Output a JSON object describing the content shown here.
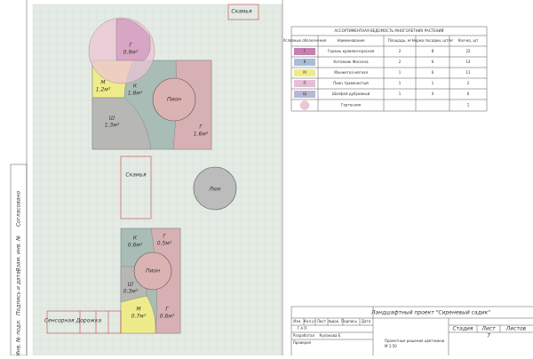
{
  "plan": {
    "benches": [
      "Скамья",
      "Скамья"
    ],
    "hatch": "Люк",
    "path": "Сенсорная Дорожка",
    "peonies": [
      "Пион",
      "Пион"
    ],
    "beds": [
      {
        "code": "Г",
        "area": "0.9м²"
      },
      {
        "code": "М",
        "area": "1.2м²"
      },
      {
        "code": "К",
        "area": "1.8м²"
      },
      {
        "code": "Ш",
        "area": "1.3м²"
      },
      {
        "code": "Г",
        "area": "1.6м²"
      },
      {
        "code": "К",
        "area": "0.6м²"
      },
      {
        "code": "Г",
        "area": "0.5м²"
      },
      {
        "code": "Ш",
        "area": "0.3м²"
      },
      {
        "code": "М",
        "area": "0.7м²"
      },
      {
        "code": "Г",
        "area": "0.6м²"
      }
    ]
  },
  "table": {
    "title": "АССОРТИМЕНТНАЯ ВЕДОМОСТЬ МНОГОЛЕТНИХ РАСТЕНИЙ",
    "headers": [
      "Условные обозначения",
      "Наименование",
      "Площадь, м²",
      "Норма посадки, шт/м²",
      "Кол-во, шт"
    ],
    "rows": [
      {
        "code": "Г",
        "color": "#c77fb0",
        "name": "Гераны кровяно-красная",
        "area": 2,
        "norm": 8,
        "qty": 22
      },
      {
        "code": "К",
        "color": "#a9bdd8",
        "name": "Котовник Фассена",
        "area": 2,
        "norm": 6,
        "qty": 14
      },
      {
        "code": "М",
        "color": "#eeec8a",
        "name": "Манжетка мягкая",
        "area": 1,
        "norm": 6,
        "qty": 11
      },
      {
        "code": "П",
        "color": "#e6bfd6",
        "name": "Пион травянистый",
        "area": 1,
        "norm": 1,
        "qty": 2
      },
      {
        "code": "Ш",
        "color": "#b9b6d8",
        "name": "Шалфей дубравный",
        "area": 1,
        "norm": 4,
        "qty": 6
      },
      {
        "name": "Гортензия",
        "qty": 1
      }
    ]
  },
  "title_block": {
    "project": "Ландшафтный проект \"Сиреневый садик\"",
    "columns": [
      "Изм.",
      "Кол.уч",
      "Лист",
      "№док.",
      "Подпись",
      "Дата"
    ],
    "gap": "Г А П",
    "roles": [
      "Разработал",
      "Проверил"
    ],
    "developer": "Кулакова Е.",
    "sheet_title": "Проектные решения цветников",
    "scale": "М 1:50",
    "stage_headers": [
      "Стадия",
      "Лист",
      "Листов"
    ],
    "sheet": "7"
  },
  "margin": [
    "Согласовано",
    "Взам. инв. №",
    "Подпись и дата",
    "Инв. № подл."
  ]
}
